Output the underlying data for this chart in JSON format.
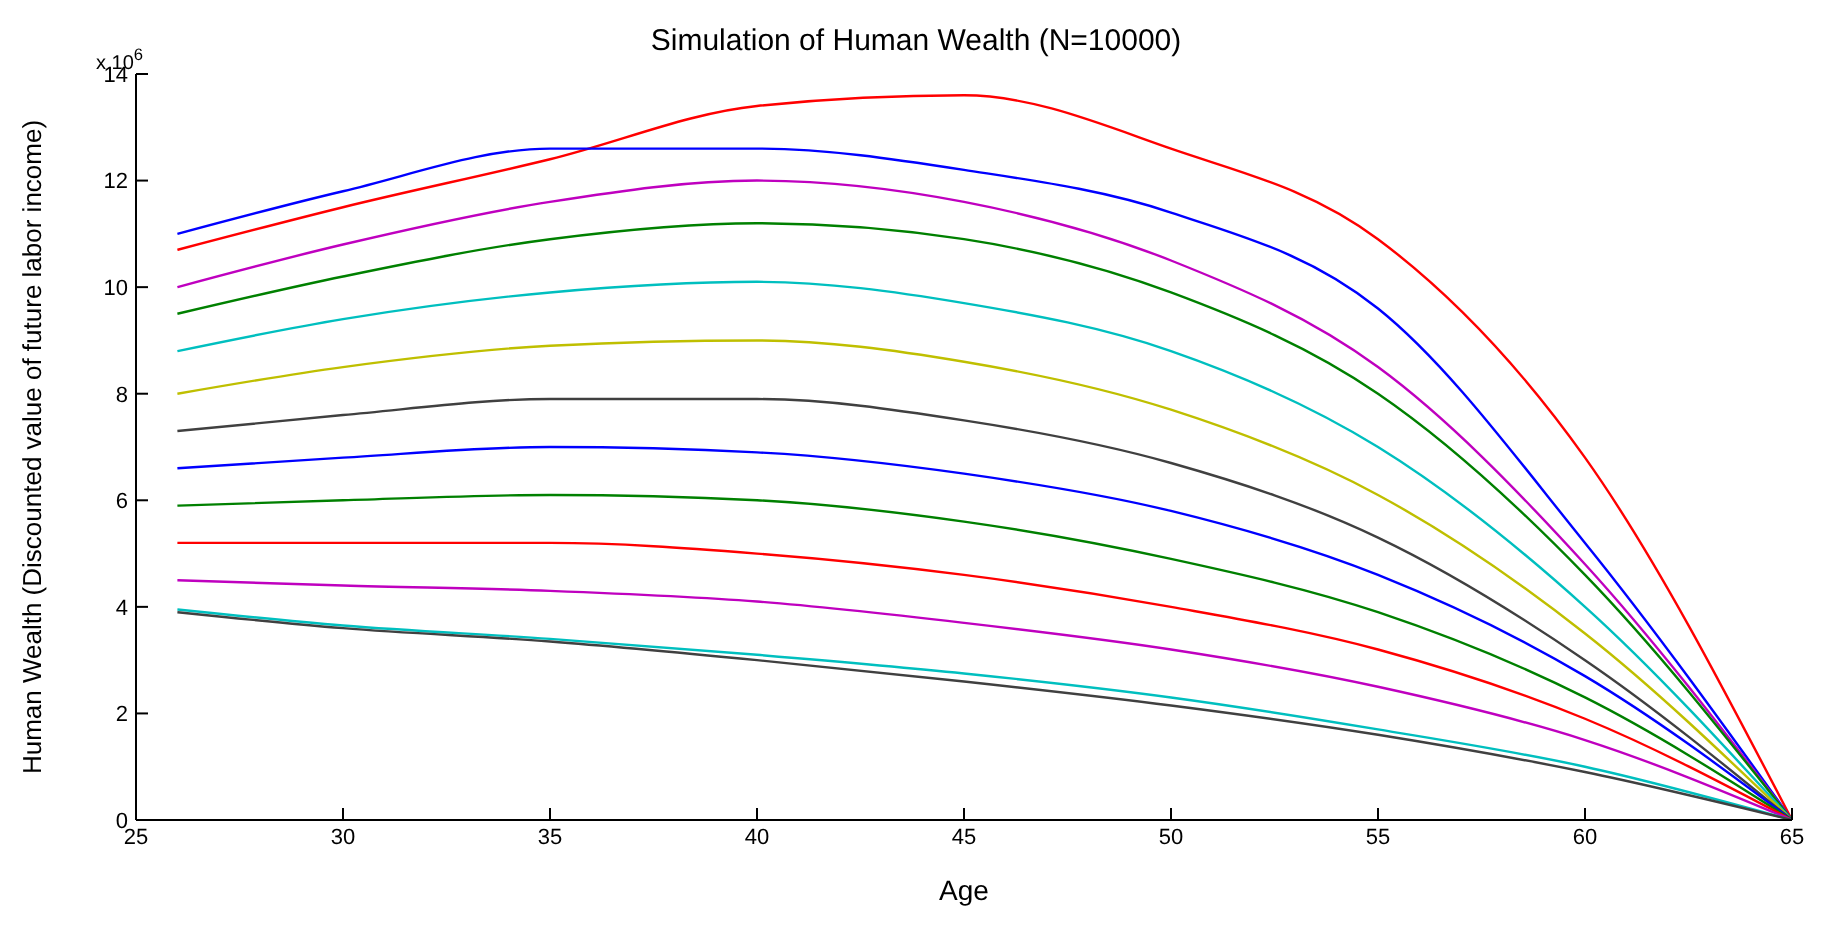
{
  "chart_data": {
    "type": "line",
    "title": "Simulation of Human Wealth (N=10000)",
    "xlabel": "Age",
    "ylabel": "Human Wealth (Discounted value of future labor income)",
    "annotations": [
      "x 10$^{6}$"
    ],
    "x": [
      26,
      30,
      35,
      40,
      45,
      50,
      55,
      60,
      65
    ],
    "xlim": [
      25,
      65
    ],
    "xticks": [
      25,
      30,
      35,
      40,
      45,
      50,
      55,
      60,
      65
    ],
    "ylim": [
      0,
      14
    ],
    "yticks": [
      0,
      2,
      4,
      6,
      8,
      10,
      12,
      14
    ],
    "grid": false,
    "legend": false,
    "marker": "none",
    "line_style": "solid",
    "series": [
      {
        "color": "#ff0000",
        "values": [
          10.7,
          11.5,
          12.4,
          13.4,
          13.6,
          12.6,
          10.9,
          6.8,
          0
        ]
      },
      {
        "color": "#0000ff",
        "values": [
          11.0,
          11.8,
          12.6,
          12.6,
          12.2,
          11.4,
          9.6,
          5.2,
          0
        ]
      },
      {
        "color": "#bf00bf",
        "values": [
          10.0,
          10.8,
          11.6,
          12.0,
          11.6,
          10.5,
          8.5,
          4.8,
          0
        ]
      },
      {
        "color": "#008000",
        "values": [
          9.5,
          10.2,
          10.9,
          11.2,
          10.9,
          9.9,
          8.0,
          4.6,
          0
        ]
      },
      {
        "color": "#00bfbf",
        "values": [
          8.8,
          9.4,
          9.9,
          10.1,
          9.7,
          8.8,
          7.0,
          4.0,
          0
        ]
      },
      {
        "color": "#bfbf00",
        "values": [
          8.0,
          8.5,
          8.9,
          9.0,
          8.6,
          7.7,
          6.1,
          3.5,
          0
        ]
      },
      {
        "color": "#404040",
        "values": [
          7.3,
          7.6,
          7.9,
          7.9,
          7.5,
          6.7,
          5.3,
          3.0,
          0
        ]
      },
      {
        "color": "#0000ff",
        "values": [
          6.6,
          6.8,
          7.0,
          6.9,
          6.5,
          5.8,
          4.6,
          2.7,
          0
        ]
      },
      {
        "color": "#008000",
        "values": [
          5.9,
          6.0,
          6.1,
          6.0,
          5.6,
          4.9,
          3.9,
          2.3,
          0
        ]
      },
      {
        "color": "#ff0000",
        "values": [
          5.2,
          5.2,
          5.2,
          5.0,
          4.6,
          4.0,
          3.2,
          1.9,
          0
        ]
      },
      {
        "color": "#bf00bf",
        "values": [
          4.5,
          4.4,
          4.3,
          4.1,
          3.7,
          3.2,
          2.5,
          1.5,
          0
        ]
      },
      {
        "color": "#00bfbf",
        "values": [
          3.95,
          3.65,
          3.4,
          3.1,
          2.75,
          2.3,
          1.7,
          1.0,
          0
        ]
      },
      {
        "color": "#404040",
        "values": [
          3.9,
          3.6,
          3.35,
          3.0,
          2.6,
          2.15,
          1.6,
          0.9,
          0
        ]
      }
    ]
  }
}
